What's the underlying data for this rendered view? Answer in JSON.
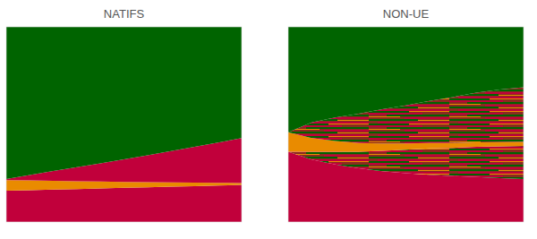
{
  "chart_data": [
    {
      "type": "area",
      "title": "NATIFS",
      "stacked": true,
      "tick_labels": false,
      "grid": false,
      "x": [
        0,
        1,
        2,
        3,
        4,
        5,
        6,
        7,
        8,
        9,
        10
      ],
      "xlim": [
        0,
        10
      ],
      "ylim": [
        0,
        100
      ],
      "series": [
        {
          "color": "#c1003b",
          "values": [
            16,
            16.3,
            16.6,
            16.9,
            17.2,
            17.5,
            17.8,
            18.1,
            18.4,
            18.7,
            19
          ]
        },
        {
          "color": "#e98b00",
          "values": [
            5.5,
            5,
            4.5,
            4,
            3.5,
            3,
            2.6,
            2.2,
            1.8,
            1.4,
            1
          ]
        },
        {
          "color": "#c1003b",
          "values": [
            0.5,
            2.8,
            5,
            7.2,
            9.4,
            11.6,
            13.8,
            16,
            18.3,
            20.6,
            23
          ]
        },
        {
          "color": "#006400",
          "values": [
            78,
            75.9,
            73.9,
            71.9,
            69.9,
            67.9,
            65.8,
            63.7,
            61.5,
            59.3,
            57
          ]
        }
      ]
    },
    {
      "type": "area",
      "title": "NON-UE",
      "stacked": true,
      "tick_labels": false,
      "grid": false,
      "x": [
        0,
        1,
        2,
        3,
        4,
        5,
        6,
        7,
        8,
        9,
        10
      ],
      "xlim": [
        0,
        10
      ],
      "ylim": [
        0,
        100
      ],
      "series": [
        {
          "color": "#c1003b",
          "values": [
            36,
            32,
            29.5,
            27.5,
            26,
            25,
            24.2,
            23.5,
            23,
            22.5,
            22
          ]
        },
        {
          "color": "#8a2a20",
          "line_style": "striped",
          "values": [
            0,
            4,
            6.5,
            8.5,
            10.5,
            12,
            13.5,
            14.5,
            15.5,
            16.3,
            17
          ]
        },
        {
          "color": "#e98b00",
          "values": [
            10,
            7,
            5.5,
            4.5,
            3.8,
            3.2,
            2.8,
            2.5,
            2.3,
            2.1,
            2
          ]
        },
        {
          "color": "#8a2a20",
          "line_style": "striped",
          "values": [
            0,
            8,
            12,
            15,
            17.5,
            19.5,
            21.5,
            23.5,
            25.5,
            27,
            28
          ]
        },
        {
          "color": "#006400",
          "values": [
            54,
            49,
            46.5,
            44.5,
            42.2,
            40.3,
            38,
            36,
            33.7,
            32.1,
            31
          ]
        }
      ]
    }
  ]
}
